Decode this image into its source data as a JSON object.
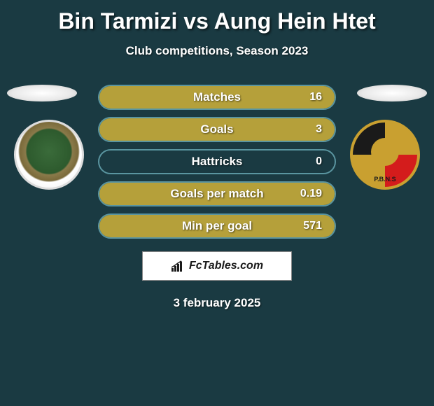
{
  "title": "Bin Tarmizi vs Aung Hein Htet",
  "subtitle": "Club competitions, Season 2023",
  "colors": {
    "background": "#1a3a42",
    "row_border": "#5a95a0",
    "row_fill": "#b5a03a"
  },
  "stats": [
    {
      "label": "Matches",
      "value": "16",
      "fill_pct": 100
    },
    {
      "label": "Goals",
      "value": "3",
      "fill_pct": 100
    },
    {
      "label": "Hattricks",
      "value": "0",
      "fill_pct": 0
    },
    {
      "label": "Goals per match",
      "value": "0.19",
      "fill_pct": 100
    },
    {
      "label": "Min per goal",
      "value": "571",
      "fill_pct": 100
    }
  ],
  "brand": "FcTables.com",
  "date": "3 february 2025"
}
